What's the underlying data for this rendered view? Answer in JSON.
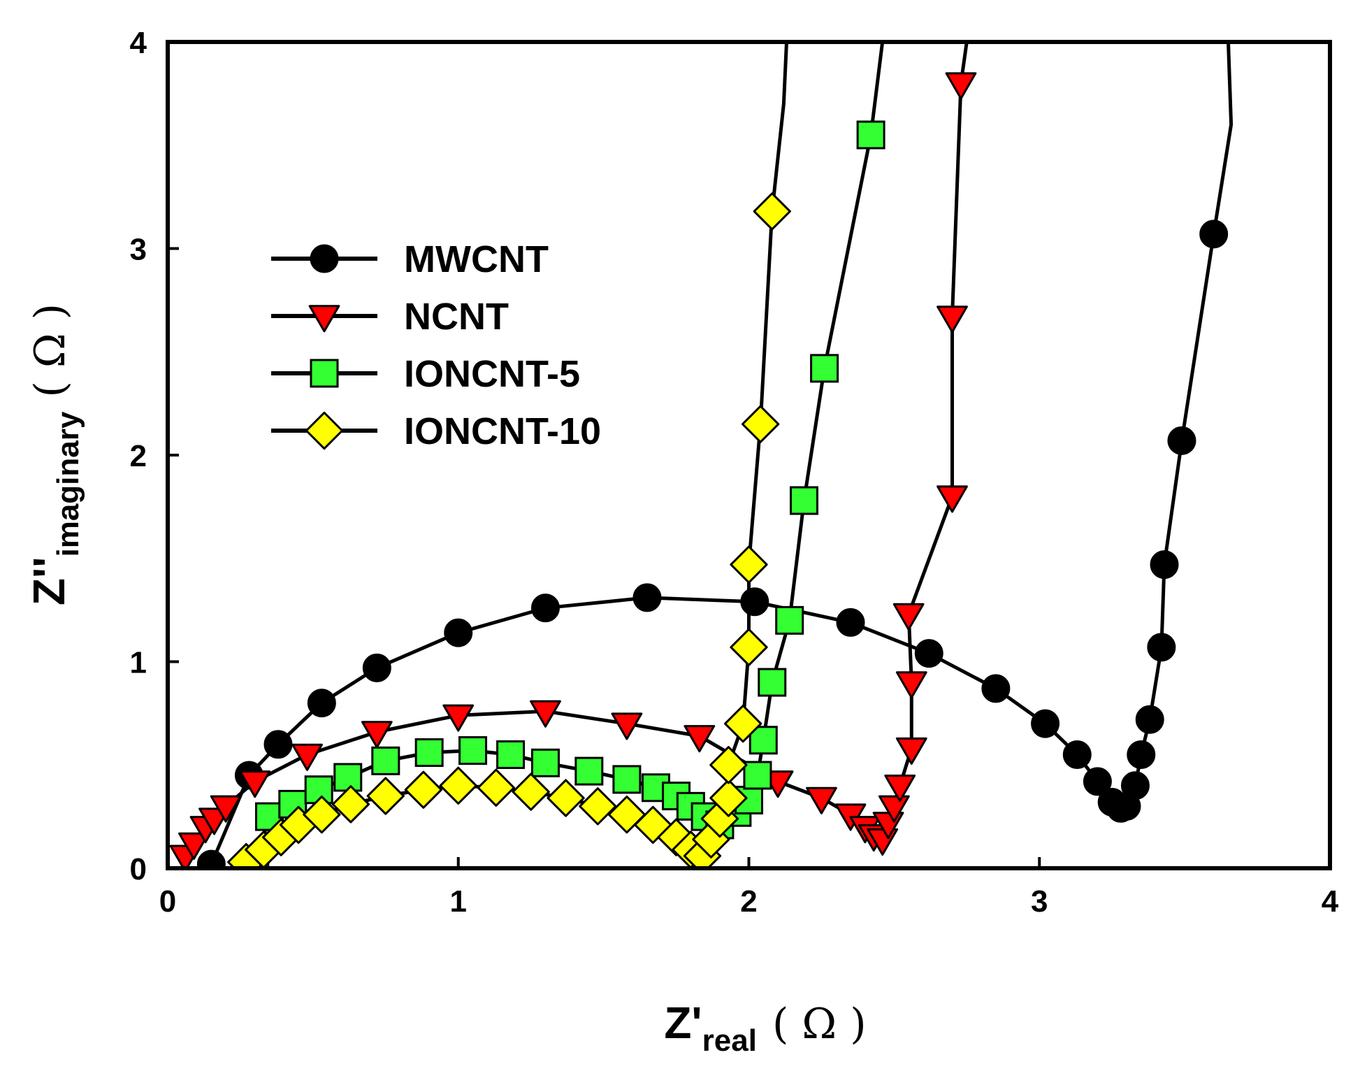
{
  "chart_data": {
    "type": "scatter",
    "title": "",
    "xlabel": {
      "main": "Z'",
      "sub": "real",
      "unit": "( Ω )"
    },
    "ylabel": {
      "main": "Z''",
      "sub": "imaginary",
      "unit": "( Ω )"
    },
    "xlim": [
      0,
      4
    ],
    "ylim": [
      0,
      4
    ],
    "xticks": [
      "0",
      "1",
      "2",
      "3",
      "4"
    ],
    "yticks": [
      "0",
      "1",
      "2",
      "3",
      "4"
    ],
    "grid": false,
    "legend_position": "upper-left",
    "series": [
      {
        "name": "MWCNT",
        "marker": "circle",
        "color": "#000000",
        "points": [
          [
            0.15,
            0.02
          ],
          [
            0.28,
            0.45
          ],
          [
            0.38,
            0.6
          ],
          [
            0.53,
            0.8
          ],
          [
            0.72,
            0.97
          ],
          [
            1.0,
            1.14
          ],
          [
            1.3,
            1.26
          ],
          [
            1.65,
            1.31
          ],
          [
            2.02,
            1.29
          ],
          [
            2.35,
            1.19
          ],
          [
            2.62,
            1.04
          ],
          [
            2.85,
            0.87
          ],
          [
            3.02,
            0.7
          ],
          [
            3.13,
            0.55
          ],
          [
            3.2,
            0.42
          ],
          [
            3.25,
            0.32
          ],
          [
            3.28,
            0.29
          ],
          [
            3.3,
            0.3
          ],
          [
            3.33,
            0.4
          ],
          [
            3.35,
            0.55
          ],
          [
            3.38,
            0.72
          ],
          [
            3.42,
            1.07
          ],
          [
            3.43,
            1.47
          ],
          [
            3.49,
            2.07
          ],
          [
            3.6,
            3.07
          ]
        ],
        "line_tail": [
          [
            3.66,
            3.6
          ],
          [
            3.65,
            4.0
          ]
        ]
      },
      {
        "name": "NCNT",
        "marker": "triangle-down",
        "color": "#ff0000",
        "points": [
          [
            0.06,
            0.06
          ],
          [
            0.09,
            0.12
          ],
          [
            0.13,
            0.2
          ],
          [
            0.16,
            0.24
          ],
          [
            0.2,
            0.3
          ],
          [
            0.3,
            0.42
          ],
          [
            0.48,
            0.55
          ],
          [
            0.72,
            0.66
          ],
          [
            1.0,
            0.74
          ],
          [
            1.3,
            0.76
          ],
          [
            1.58,
            0.7
          ],
          [
            1.83,
            0.64
          ],
          [
            2.1,
            0.42
          ],
          [
            2.25,
            0.34
          ],
          [
            2.35,
            0.26
          ],
          [
            2.4,
            0.2
          ],
          [
            2.43,
            0.16
          ],
          [
            2.46,
            0.14
          ],
          [
            2.48,
            0.22
          ],
          [
            2.5,
            0.3
          ],
          [
            2.52,
            0.4
          ],
          [
            2.56,
            0.58
          ],
          [
            2.56,
            0.9
          ],
          [
            2.55,
            1.23
          ],
          [
            2.7,
            1.8
          ],
          [
            2.7,
            2.67
          ],
          [
            2.73,
            3.8
          ]
        ],
        "line_tail": [
          [
            2.75,
            4.0
          ]
        ]
      },
      {
        "name": "IONCNT-5",
        "marker": "square",
        "color": "#33ff33",
        "points": [
          [
            0.3,
            0.02
          ],
          [
            0.35,
            0.25
          ],
          [
            0.43,
            0.31
          ],
          [
            0.52,
            0.38
          ],
          [
            0.62,
            0.44
          ],
          [
            0.75,
            0.52
          ],
          [
            0.9,
            0.56
          ],
          [
            1.05,
            0.57
          ],
          [
            1.18,
            0.55
          ],
          [
            1.3,
            0.51
          ],
          [
            1.45,
            0.47
          ],
          [
            1.58,
            0.43
          ],
          [
            1.68,
            0.39
          ],
          [
            1.75,
            0.35
          ],
          [
            1.8,
            0.3
          ],
          [
            1.85,
            0.25
          ],
          [
            1.9,
            0.21
          ],
          [
            1.96,
            0.27
          ],
          [
            2.0,
            0.33
          ],
          [
            2.03,
            0.45
          ],
          [
            2.05,
            0.62
          ],
          [
            2.08,
            0.9
          ],
          [
            2.14,
            1.2
          ],
          [
            2.19,
            1.78
          ],
          [
            2.26,
            2.42
          ],
          [
            2.42,
            3.55
          ]
        ],
        "line_tail": [
          [
            2.46,
            4.0
          ]
        ]
      },
      {
        "name": "IONCNT-10",
        "marker": "diamond",
        "color": "#ffff00",
        "points": [
          [
            0.27,
            0.03
          ],
          [
            0.33,
            0.09
          ],
          [
            0.39,
            0.15
          ],
          [
            0.45,
            0.21
          ],
          [
            0.53,
            0.26
          ],
          [
            0.63,
            0.31
          ],
          [
            0.75,
            0.35
          ],
          [
            0.88,
            0.38
          ],
          [
            1.0,
            0.4
          ],
          [
            1.13,
            0.39
          ],
          [
            1.25,
            0.37
          ],
          [
            1.37,
            0.34
          ],
          [
            1.48,
            0.3
          ],
          [
            1.58,
            0.26
          ],
          [
            1.67,
            0.21
          ],
          [
            1.75,
            0.15
          ],
          [
            1.8,
            0.09
          ],
          [
            1.84,
            0.06
          ],
          [
            1.87,
            0.14
          ],
          [
            1.9,
            0.24
          ],
          [
            1.93,
            0.34
          ],
          [
            1.93,
            0.5
          ],
          [
            1.98,
            0.7
          ],
          [
            2.0,
            1.07
          ],
          [
            2.0,
            1.47
          ],
          [
            2.04,
            2.15
          ],
          [
            2.08,
            3.18
          ]
        ],
        "line_tail": [
          [
            2.12,
            3.7
          ],
          [
            2.13,
            4.0
          ]
        ]
      }
    ]
  }
}
